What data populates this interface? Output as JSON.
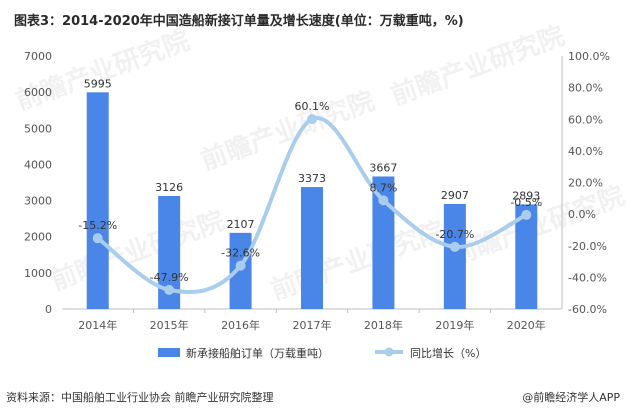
{
  "source": "资料来源：中国船舶工业行业协会 前瞻产业研究院整理",
  "brand": "@前瞻经济学人APP",
  "watermark": "前瞻产业研究院",
  "colors": {
    "bar": "#4a86e8",
    "line": "#a9cdec",
    "axis": "#bfbfbf",
    "text": "#333333"
  },
  "chart_data": {
    "type": "bar+line",
    "title": "图表3：2014-2020年中国造船新接订单量及增长速度(单位：万载重吨，%)",
    "categories": [
      "2014年",
      "2015年",
      "2016年",
      "2017年",
      "2018年",
      "2019年",
      "2020年"
    ],
    "series": [
      {
        "name": "新承接船舶订单（万载重吨）",
        "type": "bar",
        "axis": "left",
        "values": [
          5995,
          3126,
          2107,
          3373,
          3667,
          2907,
          2893
        ],
        "labels": [
          "5995",
          "3126",
          "2107",
          "3373",
          "3667",
          "2907",
          "2893"
        ]
      },
      {
        "name": "同比增长（%）",
        "type": "line",
        "axis": "right",
        "values": [
          -15.2,
          -47.9,
          -32.6,
          60.1,
          8.7,
          -20.7,
          -0.5
        ],
        "labels": [
          "-15.2%",
          "-47.9%",
          "-32.6%",
          "60.1%",
          "8.7%",
          "-20.7%",
          "-0.5%"
        ]
      }
    ],
    "left_axis": {
      "min": 0,
      "max": 7000,
      "step": 1000,
      "ticks": [
        "0",
        "1000",
        "2000",
        "3000",
        "4000",
        "5000",
        "6000",
        "7000"
      ]
    },
    "right_axis": {
      "min": -60,
      "max": 100,
      "step": 20,
      "ticks": [
        "-60.0%",
        "-40.0%",
        "-20.0%",
        "0.0%",
        "20.0%",
        "40.0%",
        "60.0%",
        "80.0%",
        "100.0%"
      ]
    },
    "legend": [
      "新承接船舶订单（万载重吨）",
      "同比增长（%）"
    ]
  }
}
